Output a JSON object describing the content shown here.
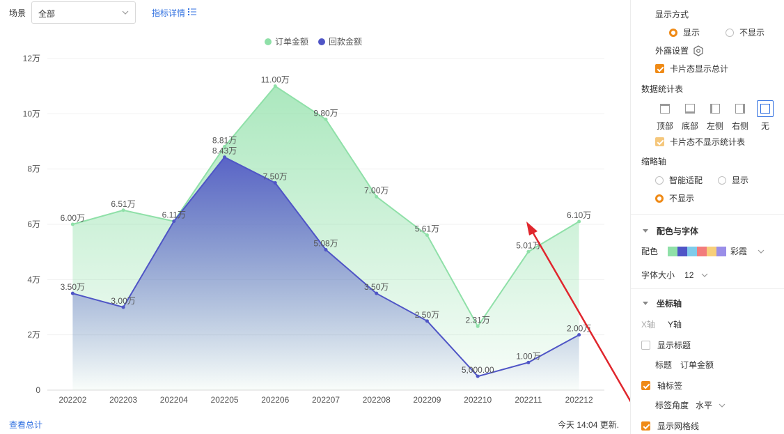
{
  "filter": {
    "scene_label": "场景",
    "scene_value": "全部",
    "detail_link": "指标详情"
  },
  "legend": [
    {
      "label": "订单金额",
      "color": "#8fe0a8"
    },
    {
      "label": "回款金额",
      "color": "#4f55c6"
    }
  ],
  "chart_data": {
    "type": "line",
    "categories": [
      "202202",
      "202203",
      "202204",
      "202205",
      "202206",
      "202207",
      "202208",
      "202209",
      "202210",
      "202211",
      "202212"
    ],
    "series": [
      {
        "name": "订单金额",
        "color": "#8fe0a8",
        "values": [
          60000,
          65100,
          61100,
          88100,
          110000,
          98000,
          70000,
          56100,
          23100,
          50100,
          61000
        ],
        "labels": [
          "6.00万",
          "6.51万",
          "6.11万",
          "8.81万",
          "11.00万",
          "9.80万",
          "7.00万",
          "5.61万",
          "2.31万",
          "5.01万",
          "6.10万"
        ]
      },
      {
        "name": "回款金额",
        "color": "#4f55c6",
        "values": [
          35000,
          30000,
          61100,
          84300,
          75000,
          50800,
          35000,
          25000,
          5000,
          10000,
          20000
        ],
        "labels": [
          "3.50万",
          "3.00万",
          "",
          "8.43万",
          "7.50万",
          "5.08万",
          "3.50万",
          "2.50万",
          "5,000.00",
          "1.00万",
          "2.00万"
        ]
      }
    ],
    "ylim": [
      0,
      120000
    ],
    "yticks": [
      "0",
      "2万",
      "4万",
      "6万",
      "8万",
      "10万",
      "12万"
    ],
    "grid": true,
    "legend_position": "top-center"
  },
  "footer": {
    "view_total": "查看总计",
    "update": "今天 14:04 更新."
  },
  "panel": {
    "display_mode": {
      "title": "显示方式",
      "show": "显示",
      "hide": "不显示"
    },
    "exposure": "外露设置",
    "card_show_total": "卡片态显示总计",
    "stat_table": {
      "title": "数据统计表",
      "positions": [
        "顶部",
        "底部",
        "左侧",
        "右侧",
        "无"
      ]
    },
    "card_hide_stat": "卡片态不显示统计表",
    "thumb_axis": {
      "title": "缩略轴",
      "smart": "智能适配",
      "show": "显示",
      "hide": "不显示"
    },
    "color_font": {
      "title": "配色与字体",
      "color_label": "配色",
      "palette_name": "彩霞",
      "palette": [
        "#8fe0a8",
        "#4f55c6",
        "#7fcbea",
        "#f27c7c",
        "#f7cf7a",
        "#9a8ee8"
      ],
      "font_size_label": "字体大小",
      "font_size": "12"
    },
    "axis": {
      "title": "坐标轴",
      "x_tab": "X轴",
      "y_tab": "Y轴",
      "show_title": "显示标题",
      "title_label": "标题",
      "title_value": "订单金额",
      "axis_label": "轴标签",
      "label_angle": "标签角度",
      "label_angle_value": "水平",
      "show_grid": "显示网格线"
    }
  }
}
